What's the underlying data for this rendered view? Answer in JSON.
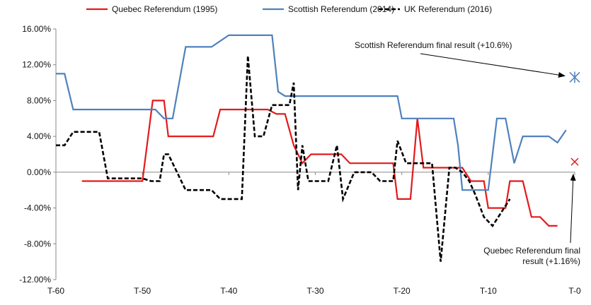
{
  "chart_data": {
    "type": "line",
    "title": "",
    "xlabel": "",
    "ylabel": "",
    "x_ticks": [
      {
        "value": -60,
        "label": "T-60"
      },
      {
        "value": -50,
        "label": "T-50"
      },
      {
        "value": -40,
        "label": "T-40"
      },
      {
        "value": -30,
        "label": "T-30"
      },
      {
        "value": -20,
        "label": "T-20"
      },
      {
        "value": -10,
        "label": "T-10"
      },
      {
        "value": 0,
        "label": "T-0"
      }
    ],
    "y_ticks": [
      {
        "value": 16,
        "label": "16.00%"
      },
      {
        "value": 12,
        "label": "12.00%"
      },
      {
        "value": 8,
        "label": "8.00%"
      },
      {
        "value": 4,
        "label": "4.00%"
      },
      {
        "value": 0,
        "label": "0.00%"
      },
      {
        "value": -4,
        "label": "-4.00%"
      },
      {
        "value": -8,
        "label": "-8.00%"
      },
      {
        "value": -12,
        "label": "-12.00%"
      }
    ],
    "xlim": [
      -60,
      0
    ],
    "ylim": [
      -12,
      16
    ],
    "grid": false,
    "legend_position": "top",
    "series": [
      {
        "name": "Quebec Referendum (1995)",
        "color": "#e31a1c",
        "dash": "solid",
        "x": [
          -57,
          -54,
          -51,
          -50,
          -48.8,
          -48,
          -47.5,
          -47,
          -45,
          -43,
          -41.8,
          -41,
          -39,
          -37,
          -35.5,
          -34.5,
          -33.5,
          -32.5,
          -31.5,
          -30.5,
          -29.5,
          -28.5,
          -27.5,
          -27,
          -26,
          -25,
          -24,
          -23,
          -22,
          -21,
          -20.5,
          -20,
          -19,
          -18.2,
          -17.5,
          -16,
          -15,
          -14,
          -13.5,
          -13,
          -12,
          -11,
          -10.5,
          -10,
          -9,
          -8,
          -7.5,
          -7,
          -6,
          -5,
          -4,
          -3,
          -2
        ],
        "y": [
          -1,
          -1,
          -1,
          -1,
          8,
          8,
          8,
          4,
          4,
          4,
          4,
          7,
          7,
          7,
          7,
          6.5,
          6.5,
          3,
          1,
          2,
          2,
          2,
          2,
          2,
          1,
          1,
          1,
          1,
          1,
          1,
          -3,
          -3,
          -3,
          6,
          0.5,
          0.5,
          0.5,
          0.5,
          0.5,
          0.5,
          -1,
          -1,
          -1,
          -4,
          -4,
          -4,
          -1,
          -1,
          -1,
          -5,
          -5,
          -6,
          -6
        ]
      },
      {
        "name": "Scottish Referendum (2014)",
        "color": "#4f81bd",
        "dash": "solid",
        "x": [
          -60,
          -59,
          -58,
          -56,
          -53,
          -50,
          -48.5,
          -47.5,
          -46.5,
          -45,
          -43,
          -42,
          -40,
          -38,
          -36,
          -35,
          -34.3,
          -33.5,
          -32,
          -30,
          -28,
          -25,
          -22,
          -20.5,
          -20,
          -18,
          -16,
          -15,
          -14,
          -13.5,
          -13,
          -12,
          -11,
          -10.5,
          -10,
          -9,
          -8.5,
          -8,
          -7,
          -6,
          -5,
          -4,
          -3,
          -2,
          -1
        ],
        "y": [
          11,
          11,
          7,
          7,
          7,
          7,
          7,
          6,
          6,
          14,
          14,
          14,
          15.3,
          15.3,
          15.3,
          15.3,
          9,
          8.5,
          8.5,
          8.5,
          8.5,
          8.5,
          8.5,
          8.5,
          6,
          6,
          6,
          6,
          6,
          3,
          -2,
          -2,
          -2,
          -2,
          -2,
          6,
          6,
          6,
          1,
          4,
          4,
          4,
          4,
          3.3,
          4.7
        ]
      },
      {
        "name": "UK Referendum (2016)",
        "color": "#000000",
        "dash": "dashed",
        "x": [
          -60,
          -59,
          -58,
          -56,
          -55,
          -54,
          -52,
          -50,
          -49,
          -48,
          -47.5,
          -47,
          -45,
          -43,
          -42,
          -41,
          -40,
          -38.5,
          -37.8,
          -37,
          -36,
          -35,
          -34,
          -33,
          -32.5,
          -32,
          -31.5,
          -30.8,
          -30,
          -29.2,
          -28.5,
          -27.5,
          -26.8,
          -25.5,
          -24.5,
          -23.5,
          -22.5,
          -21.5,
          -21,
          -20.5,
          -19.5,
          -18.5,
          -17.5,
          -16.5,
          -15.5,
          -14.5,
          -13.8,
          -13,
          -12.2,
          -11.5,
          -10.5,
          -9.5,
          -8.5,
          -7.5
        ],
        "y": [
          3,
          3,
          4.5,
          4.5,
          4.5,
          -0.7,
          -0.7,
          -0.7,
          -1,
          -1,
          2,
          2,
          -2,
          -2,
          -2,
          -3,
          -3,
          -3,
          13,
          4,
          4,
          7.5,
          7.5,
          7.5,
          10,
          -2,
          3,
          -1,
          -1,
          -1,
          -1,
          3,
          -3,
          0,
          0,
          0,
          -1,
          -1,
          -1,
          3.5,
          1,
          1,
          1,
          1,
          -10,
          0.5,
          0.5,
          0,
          -1,
          -2.5,
          -5,
          -6,
          -4.5,
          -3
        ]
      }
    ],
    "markers": [
      {
        "name": "Scottish Referendum final result",
        "x": 0,
        "y": 10.6,
        "symbol": "asterisk",
        "color": "#4f81bd"
      },
      {
        "name": "Quebec Referendum final result",
        "x": 0,
        "y": 1.16,
        "symbol": "x",
        "color": "#e31a1c"
      }
    ],
    "annotations": [
      {
        "text": "Scottish Referendum final result (+10.6%)",
        "target_marker": 0
      },
      {
        "lines": [
          "Quebec Referendum final",
          "result (+1.16%)"
        ],
        "target_marker": 1
      }
    ]
  }
}
